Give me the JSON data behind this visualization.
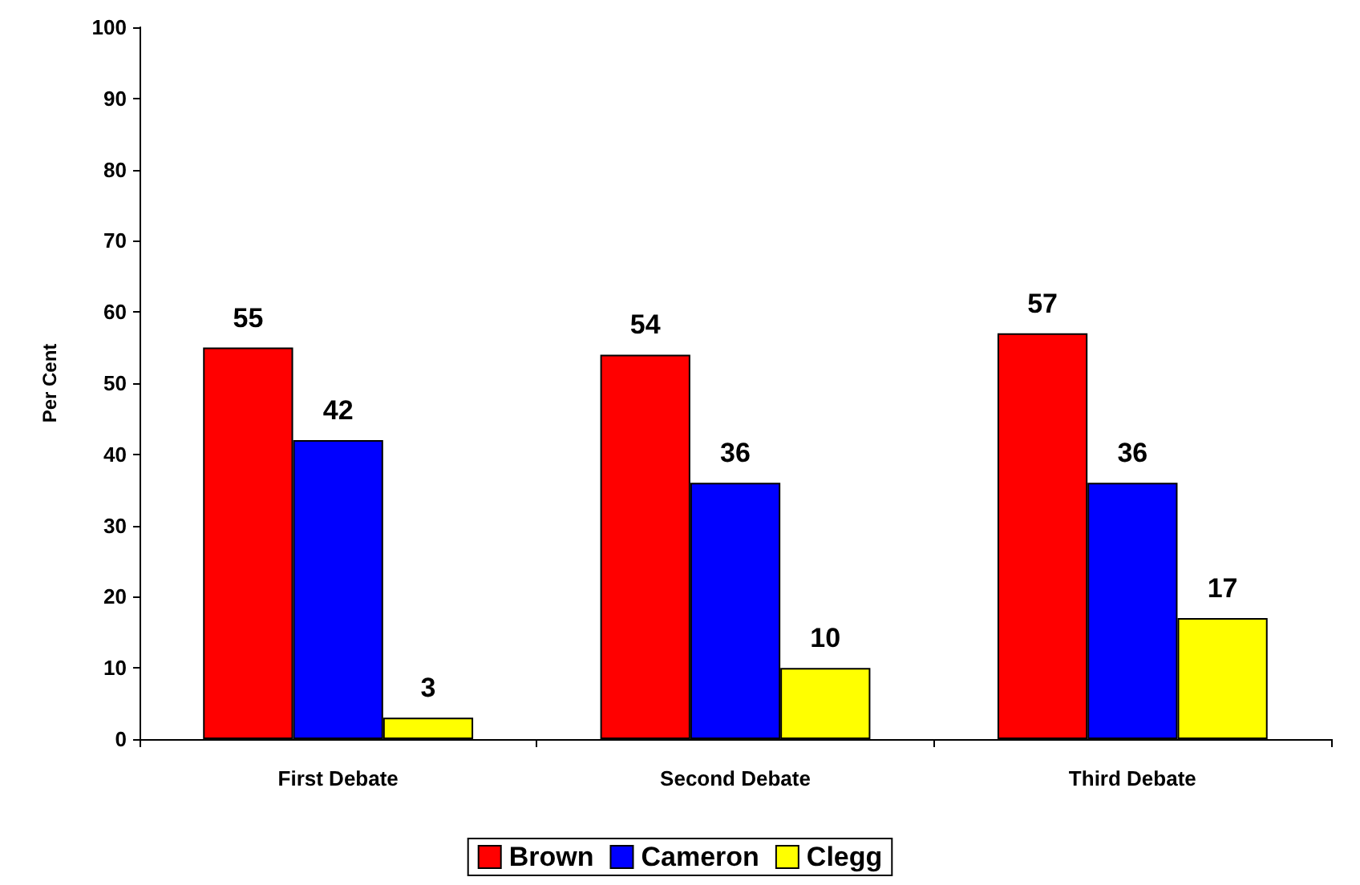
{
  "chart_data": {
    "type": "bar",
    "ylabel": "Per Cent",
    "categories": [
      "First Debate",
      "Second Debate",
      "Third Debate"
    ],
    "series": [
      {
        "name": "Brown",
        "color": "#ff0000",
        "values": [
          55,
          54,
          57
        ]
      },
      {
        "name": "Cameron",
        "color": "#0000ff",
        "values": [
          42,
          36,
          36
        ]
      },
      {
        "name": "Clegg",
        "color": "#ffff00",
        "values": [
          3,
          10,
          17
        ]
      }
    ],
    "ylim": [
      0,
      100
    ],
    "yticks": [
      0,
      10,
      20,
      30,
      40,
      50,
      60,
      70,
      80,
      90,
      100
    ],
    "grid": false,
    "legend": "bottom",
    "data_labels": true
  }
}
